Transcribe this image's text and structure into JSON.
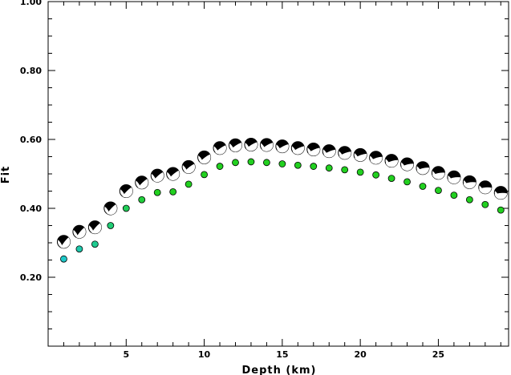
{
  "chart_data": {
    "type": "scatter",
    "xlabel": "Depth (km)",
    "ylabel": "Fit",
    "xlim": [
      0,
      29.5
    ],
    "ylim": [
      0.0,
      1.0
    ],
    "x_ticks": [
      5,
      10,
      15,
      20,
      25
    ],
    "x_tick_labels": [
      "5",
      "10",
      "15",
      "20",
      "25"
    ],
    "y_ticks": [
      0.2,
      0.4,
      0.6,
      0.8,
      1.0
    ],
    "y_tick_labels": [
      "0.20",
      "0.40",
      "0.60",
      "0.80",
      "1.00"
    ],
    "grid": false,
    "series": [
      {
        "marker": "focal-mechanism-beachball",
        "x": [
          1,
          2,
          3,
          4,
          5,
          6,
          7,
          8,
          9,
          10,
          11,
          12,
          13,
          14,
          15,
          16,
          17,
          18,
          19,
          20,
          21,
          22,
          23,
          24,
          25,
          26,
          27,
          28,
          29
        ],
        "values": [
          0.303,
          0.332,
          0.345,
          0.4,
          0.45,
          0.475,
          0.495,
          0.5,
          0.52,
          0.548,
          0.575,
          0.583,
          0.585,
          0.584,
          0.58,
          0.575,
          0.571,
          0.566,
          0.561,
          0.555,
          0.547,
          0.538,
          0.528,
          0.517,
          0.503,
          0.49,
          0.476,
          0.461,
          0.445
        ]
      },
      {
        "marker": "circle",
        "x": [
          1,
          2,
          3,
          4,
          5,
          6,
          7,
          8,
          9,
          10,
          11,
          12,
          13,
          14,
          15,
          16,
          17,
          18,
          19,
          20,
          21,
          22,
          23,
          24,
          25,
          26,
          27,
          28,
          29
        ],
        "values": [
          0.253,
          0.282,
          0.296,
          0.35,
          0.4,
          0.425,
          0.446,
          0.448,
          0.47,
          0.498,
          0.522,
          0.533,
          0.535,
          0.533,
          0.529,
          0.525,
          0.522,
          0.517,
          0.512,
          0.505,
          0.497,
          0.487,
          0.477,
          0.464,
          0.452,
          0.438,
          0.425,
          0.411,
          0.395
        ]
      }
    ],
    "colors": {
      "point_start": "#1ec8c8",
      "point_end": "#22d020",
      "beachball_fill": "#000000",
      "beachball_light": "#ffffff"
    }
  }
}
